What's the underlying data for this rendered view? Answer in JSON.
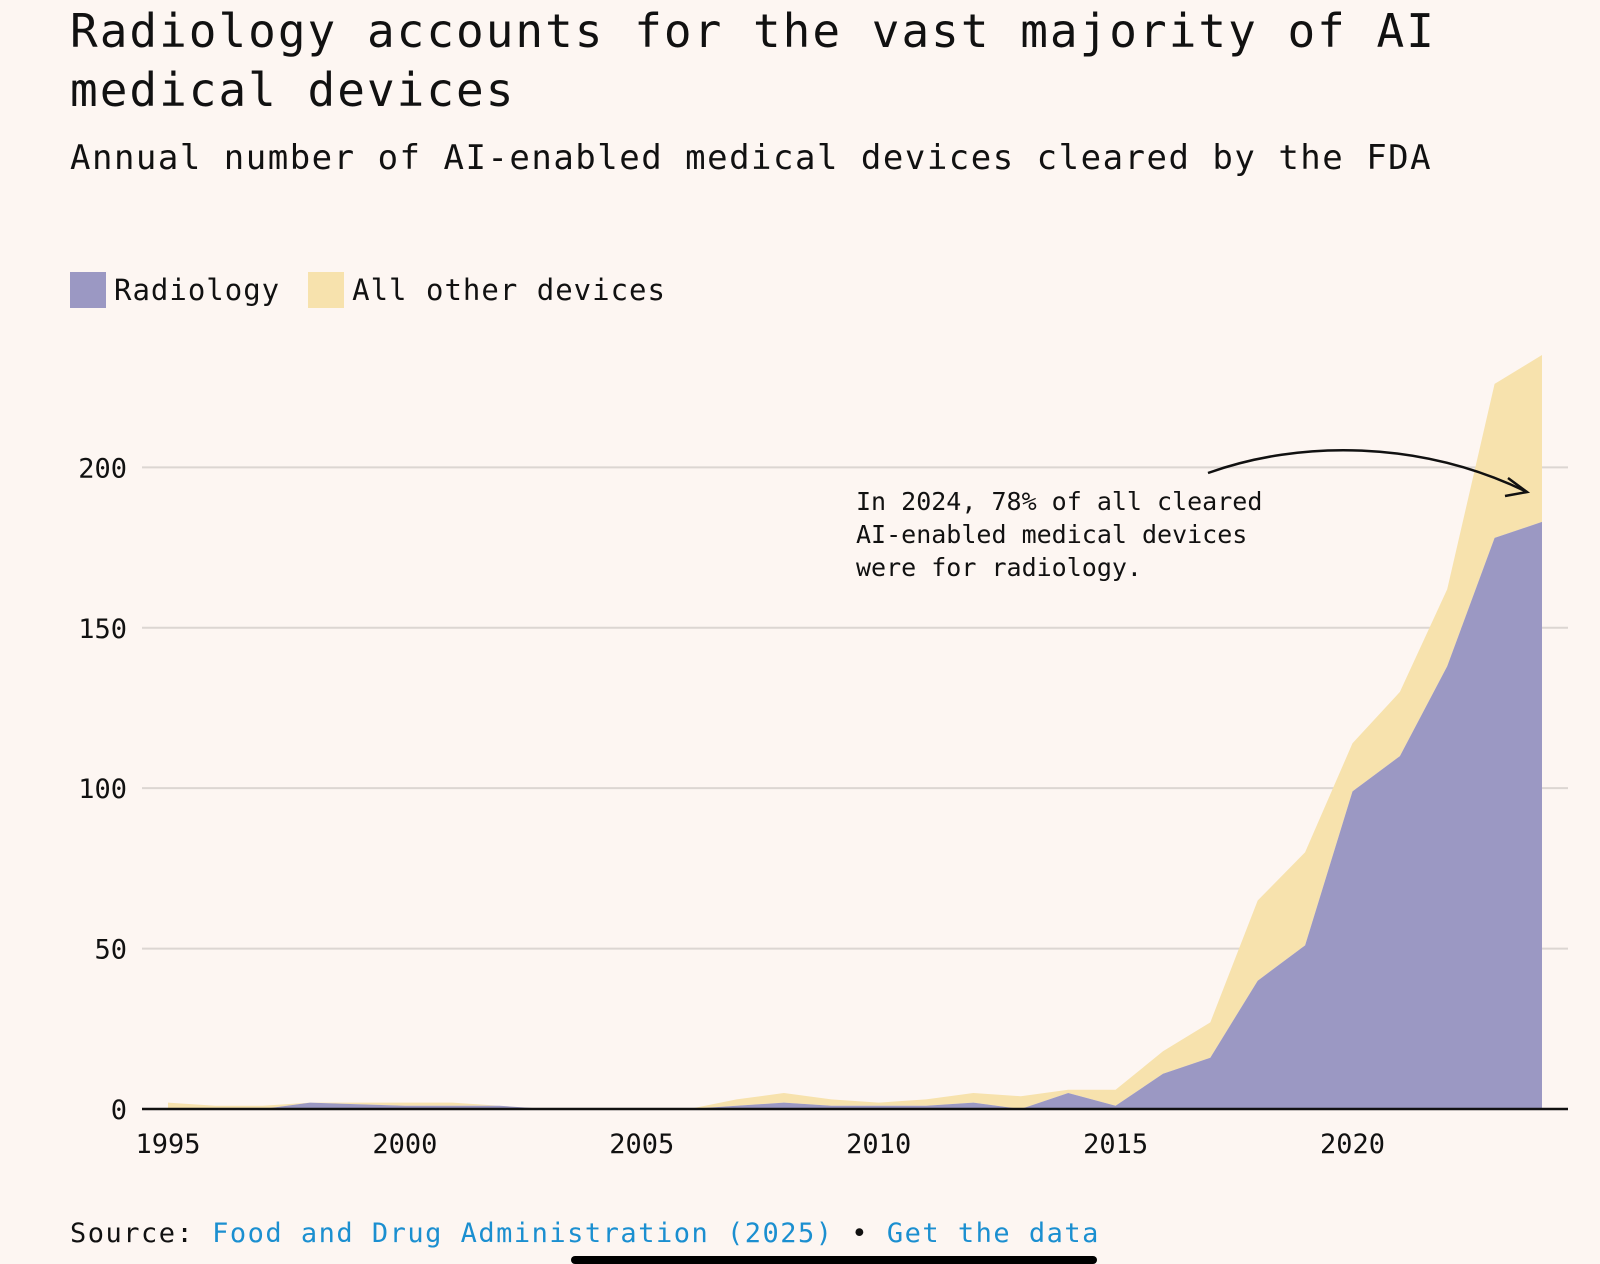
{
  "title": "Radiology accounts for the vast majority of AI medical devices",
  "subtitle": "Annual number of AI-enabled medical devices cleared by the FDA",
  "legend": {
    "radiology": "Radiology",
    "other": "All other devices"
  },
  "annotation": {
    "line1": "In 2024, 78% of all cleared",
    "line2": "AI-enabled medical devices",
    "line3": "were for radiology."
  },
  "source": {
    "prefix": "Source:",
    "link_label": "Food and Drug Administration (2025)",
    "separator": "•",
    "data_link_label": "Get the data"
  },
  "colors": {
    "radiology": "#9b98c3",
    "other": "#f7e2ad",
    "link": "#1b8fd0",
    "background": "#fdf6f2"
  },
  "chart_data": {
    "type": "area",
    "stacked": true,
    "title": "Radiology accounts for the vast majority of AI medical devices",
    "subtitle": "Annual number of AI-enabled medical devices cleared by the FDA",
    "xlabel": "",
    "ylabel": "",
    "x": [
      1995,
      1996,
      1997,
      1998,
      1999,
      2000,
      2001,
      2002,
      2003,
      2004,
      2005,
      2006,
      2007,
      2008,
      2009,
      2010,
      2011,
      2012,
      2013,
      2014,
      2015,
      2016,
      2017,
      2018,
      2019,
      2020,
      2021,
      2022,
      2023,
      2024
    ],
    "series": [
      {
        "name": "Radiology",
        "values": [
          0,
          0,
          0,
          2,
          1.5,
          1,
          1,
          1,
          0,
          0,
          0,
          0,
          1,
          2,
          1,
          1,
          1,
          2,
          0,
          5,
          1,
          11,
          16,
          40,
          51,
          99,
          110,
          138,
          178,
          183
        ]
      },
      {
        "name": "All other devices",
        "values": [
          2,
          1,
          1,
          0,
          0.5,
          1,
          1,
          0,
          0,
          0,
          0,
          0,
          2,
          3,
          2,
          1,
          2,
          3,
          4,
          1,
          5,
          7,
          11,
          25,
          29,
          15,
          20,
          24,
          48,
          52
        ]
      }
    ],
    "xticks": [
      1995,
      2000,
      2005,
      2010,
      2015,
      2020
    ],
    "yticks": [
      0,
      50,
      100,
      150,
      200
    ],
    "xlim": [
      1995,
      2024
    ],
    "ylim": [
      0,
      240
    ],
    "grid": true,
    "legend_position": "top-left"
  }
}
